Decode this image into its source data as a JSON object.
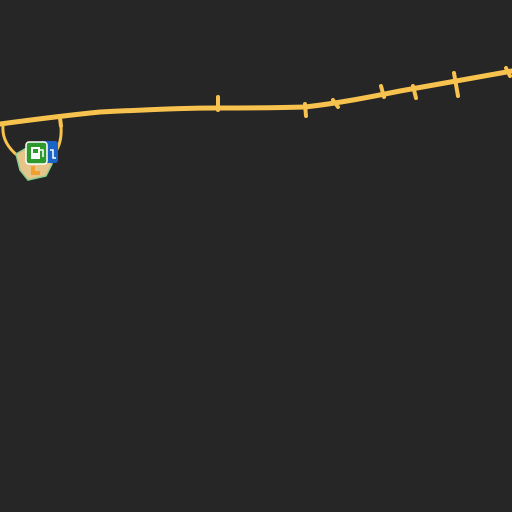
{
  "map": {
    "background_color": "#262626",
    "road_color": "#f7c24d",
    "service_area_fill": "#e6c48a",
    "service_area_outline": "#8ccf8c",
    "parking_marker_color": "#f0a030",
    "fuel_icon_bg": "#2e9a2e",
    "ev_charge_icon_bg": "#1a64c8",
    "features": {
      "highway": {
        "kind": "motorway",
        "color_name": "yellow"
      },
      "service_area": {
        "kind": "rest-area"
      },
      "pois": [
        {
          "type": "fuel-station",
          "icon": "fuel-pump-icon"
        },
        {
          "type": "ev-charging-station",
          "icon": "ev-charger-icon"
        }
      ]
    }
  }
}
